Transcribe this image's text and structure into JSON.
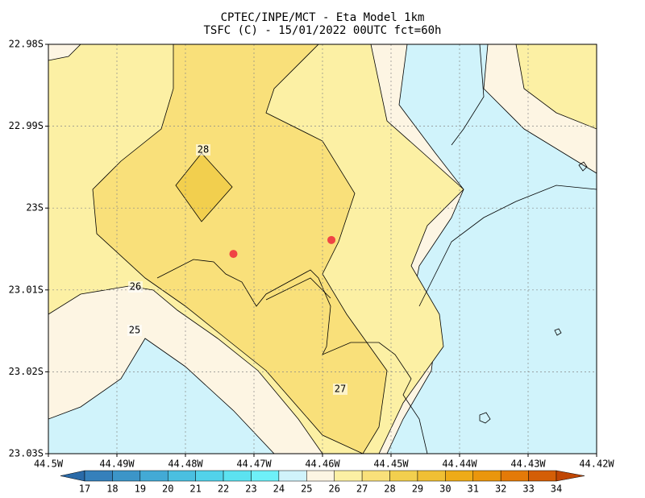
{
  "chart_data": {
    "type": "contour",
    "title": "CPTEC/INPE/MCT -  Eta Model 1km",
    "subtitle": "TSFC (C) - 15/01/2022 00UTC fct=60h",
    "xlim": [
      -44.5,
      -44.42
    ],
    "ylim": [
      -23.03,
      -22.98
    ],
    "xticks": [
      {
        "value": -44.5,
        "label": "44.5W"
      },
      {
        "value": -44.49,
        "label": "44.49W"
      },
      {
        "value": -44.48,
        "label": "44.48W"
      },
      {
        "value": -44.47,
        "label": "44.47W"
      },
      {
        "value": -44.46,
        "label": "44.46W"
      },
      {
        "value": -44.45,
        "label": "44.45W"
      },
      {
        "value": -44.44,
        "label": "44.44W"
      },
      {
        "value": -44.43,
        "label": "44.43W"
      },
      {
        "value": -44.42,
        "label": "44.42W"
      }
    ],
    "yticks": [
      {
        "value": -22.98,
        "label": "22.98S"
      },
      {
        "value": -22.99,
        "label": "22.99S"
      },
      {
        "value": -23.0,
        "label": "23S"
      },
      {
        "value": -23.01,
        "label": "23.01S"
      },
      {
        "value": -23.02,
        "label": "23.02S"
      },
      {
        "value": -23.03,
        "label": "23.03S"
      }
    ],
    "grid": true,
    "colorbar": {
      "levels": [
        17,
        18,
        19,
        20,
        21,
        22,
        23,
        24,
        25,
        26,
        27,
        28,
        29,
        30,
        31,
        32,
        33,
        34
      ],
      "colors": [
        "#2a6aa8",
        "#3580bb",
        "#3c95c8",
        "#43aad5",
        "#4abfe0",
        "#52d2ea",
        "#5ce2f0",
        "#6ef0f8",
        "#d0f3fb",
        "#fdf5e3",
        "#fcf0a4",
        "#f9e07a",
        "#f2cf4e",
        "#f0bf34",
        "#eeab18",
        "#ea960c",
        "#e47a08",
        "#d45e06",
        "#c04604"
      ]
    },
    "contour_labels": [
      28,
      26,
      25,
      27
    ],
    "points": {
      "x": [
        -44.473,
        -44.4587
      ],
      "y": [
        -23.0056,
        -23.0039
      ],
      "color": "#f04444"
    }
  }
}
